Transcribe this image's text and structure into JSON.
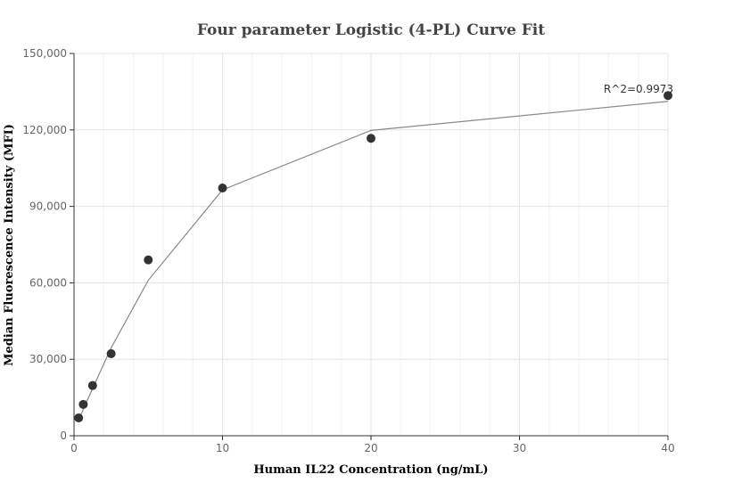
{
  "chart_data": {
    "type": "scatter",
    "title": "Four parameter Logistic (4-PL) Curve Fit",
    "xlabel": "Human IL22 Concentration (ng/mL)",
    "ylabel": "Median Fluorescence Intensity (MFI)",
    "xlim": [
      0,
      40
    ],
    "ylim": [
      0,
      150000
    ],
    "x_ticks": [
      0,
      10,
      20,
      30,
      40
    ],
    "y_ticks": [
      0,
      30000,
      60000,
      90000,
      120000,
      150000
    ],
    "x_tick_labels": [
      "0",
      "10",
      "20",
      "30",
      "40"
    ],
    "y_tick_labels": [
      "0",
      "30,000",
      "60,000",
      "90,000",
      "120,000",
      "150,000"
    ],
    "grid": true,
    "series": [
      {
        "type": "scatter",
        "x": [
          0.3125,
          0.625,
          1.25,
          2.5,
          5,
          10,
          20,
          40
        ],
        "y": [
          7000,
          12300,
          19700,
          32200,
          69000,
          97200,
          116700,
          133500
        ]
      },
      {
        "type": "line",
        "x": [
          0.3125,
          0.625,
          1.25,
          2.5,
          5,
          10,
          20,
          40
        ],
        "y": [
          6000,
          10500,
          18500,
          34500,
          61000,
          96500,
          119800,
          131200
        ]
      }
    ],
    "annotations": [
      {
        "text": "R^2=0.9973",
        "x": 40,
        "y": 133500
      }
    ],
    "colors": {
      "points": "#333333",
      "curve": "#888888"
    }
  }
}
